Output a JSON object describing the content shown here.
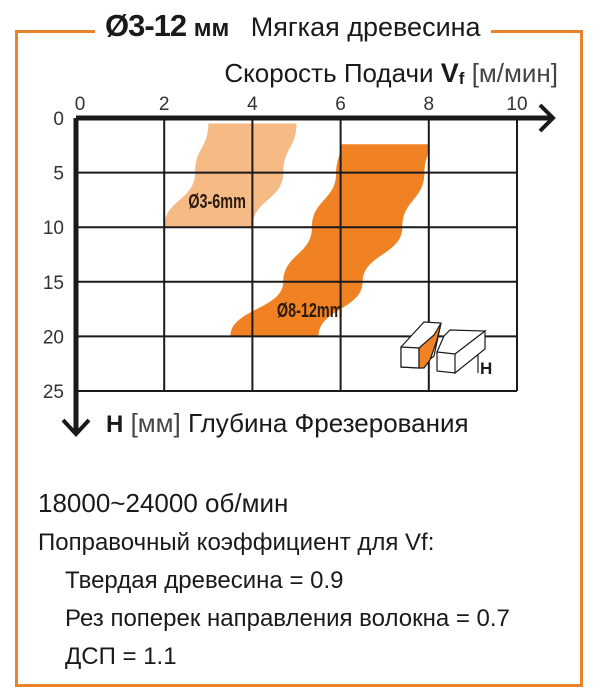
{
  "header": {
    "diameter": "Ø3-12",
    "unit": "мм",
    "material": "Мягкая древесина"
  },
  "chart_data": {
    "type": "area",
    "xlabel": {
      "prefix": "Скорость Подачи ",
      "symbol": "V",
      "subscript": "f",
      "unit": " [м/мин]"
    },
    "ylabel": {
      "symbol": "H",
      "unit": " [мм] ",
      "text": "Глубина Фрезерования"
    },
    "xlim": [
      0,
      10
    ],
    "ylim": [
      0,
      25
    ],
    "y_inverted": true,
    "x_axis_position": "top",
    "grid": true,
    "xticks": [
      0,
      2,
      4,
      6,
      8,
      10
    ],
    "yticks": [
      0,
      5,
      10,
      15,
      20,
      25
    ],
    "series": [
      {
        "name": "Ø3-6mm",
        "color": "#f6bb85",
        "left_edge": [
          [
            3.0,
            0.5
          ],
          [
            2.7,
            5
          ],
          [
            2.0,
            10
          ]
        ],
        "right_edge": [
          [
            5.0,
            0.5
          ],
          [
            4.7,
            5
          ],
          [
            4.0,
            10
          ]
        ],
        "label_at": [
          3.2,
          7.5
        ]
      },
      {
        "name": "Ø8-12mm",
        "color": "#f08223",
        "left_edge": [
          [
            6.0,
            2.4
          ],
          [
            5.9,
            5
          ],
          [
            5.35,
            10
          ],
          [
            4.7,
            15
          ],
          [
            3.5,
            20
          ]
        ],
        "right_edge": [
          [
            8.0,
            2.4
          ],
          [
            7.9,
            5
          ],
          [
            7.4,
            10
          ],
          [
            6.5,
            15
          ],
          [
            5.5,
            20
          ]
        ],
        "label_at": [
          5.3,
          17.5
        ]
      }
    ],
    "inset_label": "H"
  },
  "notes": {
    "rpm_value": "18000~24000",
    "rpm_unit": " об/мин",
    "correction_title": "Поправочный коэффициент для Vf:",
    "items": [
      "Твердая древесина = 0.9",
      "Рез поперек направления волокна = 0.7",
      "ДСП = 1.1"
    ]
  }
}
